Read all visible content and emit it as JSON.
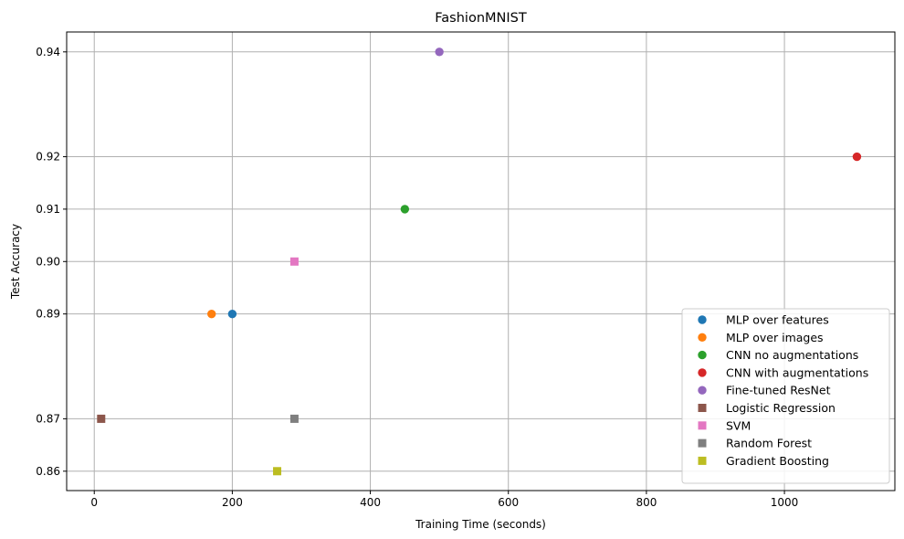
{
  "chart_data": {
    "type": "scatter",
    "title": "FashionMNIST",
    "xlabel": "Training Time (seconds)",
    "ylabel": "Test Accuracy",
    "xlim": [
      -40,
      1160
    ],
    "ylim": [
      0.8563,
      0.9438
    ],
    "x_ticks": [
      0,
      200,
      400,
      600,
      800,
      1000
    ],
    "x_tick_labels": [
      "0",
      "200",
      "400",
      "600",
      "800",
      "1000"
    ],
    "y_ticks": [
      0.86,
      0.87,
      0.89,
      0.9,
      0.91,
      0.92,
      0.94
    ],
    "y_tick_labels": [
      "0.86",
      "0.87",
      "0.89",
      "0.90",
      "0.91",
      "0.92",
      "0.94"
    ],
    "grid": true,
    "legend_position": "bottom-right",
    "series": [
      {
        "name": "MLP over features",
        "marker": "circle",
        "color": "#1f77b4",
        "points": [
          {
            "x": 200,
            "y": 0.89
          }
        ]
      },
      {
        "name": "MLP over images",
        "marker": "circle",
        "color": "#ff7f0e",
        "points": [
          {
            "x": 170,
            "y": 0.89
          }
        ]
      },
      {
        "name": "CNN no augmentations",
        "marker": "circle",
        "color": "#2ca02c",
        "points": [
          {
            "x": 450,
            "y": 0.91
          }
        ]
      },
      {
        "name": "CNN with augmentations",
        "marker": "circle",
        "color": "#d62728",
        "points": [
          {
            "x": 1105,
            "y": 0.92
          }
        ]
      },
      {
        "name": "Fine-tuned ResNet",
        "marker": "circle",
        "color": "#9467bd",
        "points": [
          {
            "x": 500,
            "y": 0.94
          }
        ]
      },
      {
        "name": "Logistic Regression",
        "marker": "square",
        "color": "#8c564b",
        "points": [
          {
            "x": 10,
            "y": 0.87
          }
        ]
      },
      {
        "name": "SVM",
        "marker": "square",
        "color": "#e377c2",
        "points": [
          {
            "x": 290,
            "y": 0.9
          }
        ]
      },
      {
        "name": "Random Forest",
        "marker": "square",
        "color": "#7f7f7f",
        "points": [
          {
            "x": 290,
            "y": 0.87
          }
        ]
      },
      {
        "name": "Gradient Boosting",
        "marker": "square",
        "color": "#bcbd22",
        "points": [
          {
            "x": 265,
            "y": 0.86
          }
        ]
      }
    ]
  }
}
